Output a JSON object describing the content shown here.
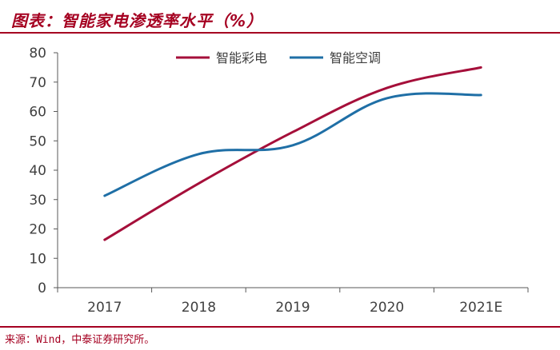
{
  "header": {
    "title": "图表：智能家电渗透率水平（%）"
  },
  "footer": {
    "source": "来源：Wind，中泰证券研究所。"
  },
  "colors": {
    "accent": "#a50021",
    "series_tv": "#a50f3a",
    "series_ac": "#1f6fa6",
    "axis": "#595959",
    "text": "#404040"
  },
  "chart_data": {
    "type": "line",
    "title": "智能家电渗透率水平（%）",
    "xlabel": "",
    "ylabel": "",
    "categories": [
      "2017",
      "2018",
      "2019",
      "2020",
      "2021E"
    ],
    "ylim": [
      0,
      80
    ],
    "yticks": [
      0,
      10,
      20,
      30,
      40,
      50,
      60,
      70,
      80
    ],
    "grid": false,
    "legend_position": "top-right",
    "series": [
      {
        "name": "智能彩电",
        "values": [
          16.3,
          35.5,
          53.0,
          68.0,
          75.0
        ]
      },
      {
        "name": "智能空调",
        "values": [
          31.3,
          45.5,
          48.5,
          64.5,
          65.6
        ]
      }
    ]
  }
}
